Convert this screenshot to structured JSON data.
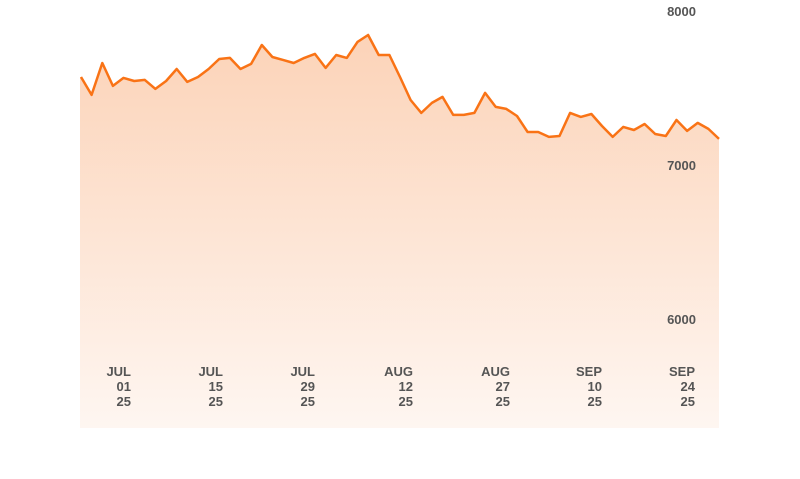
{
  "chart_data": {
    "type": "area",
    "title": "",
    "xlabel": "",
    "ylabel": "",
    "ylim": [
      5292,
      8071
    ],
    "grid": false,
    "legend": "none",
    "line_color": "#f97316",
    "fill_color_top": "#fcd3b8",
    "fill_color_bottom": "#fef6f1",
    "y_ticks": [
      {
        "value": 8000,
        "label": "8000"
      },
      {
        "value": 7000,
        "label": "7000"
      },
      {
        "value": 6000,
        "label": "6000"
      }
    ],
    "x_ticks": [
      {
        "month": "JUL",
        "day": "01",
        "year": "25"
      },
      {
        "month": "JUL",
        "day": "15",
        "year": "25"
      },
      {
        "month": "JUL",
        "day": "29",
        "year": "25"
      },
      {
        "month": "AUG",
        "day": "12",
        "year": "25"
      },
      {
        "month": "AUG",
        "day": "27",
        "year": "25"
      },
      {
        "month": "SEP",
        "day": "10",
        "year": "25"
      },
      {
        "month": "SEP",
        "day": "24",
        "year": "25"
      }
    ],
    "values": [
      7571,
      7455,
      7662,
      7513,
      7565,
      7545,
      7552,
      7494,
      7545,
      7623,
      7539,
      7571,
      7623,
      7688,
      7695,
      7623,
      7656,
      7779,
      7701,
      7682,
      7662,
      7695,
      7721,
      7630,
      7714,
      7695,
      7799,
      7844,
      7714,
      7714,
      7571,
      7422,
      7338,
      7403,
      7442,
      7325,
      7325,
      7338,
      7468,
      7377,
      7364,
      7318,
      7214,
      7214,
      7182,
      7188,
      7338,
      7312,
      7331,
      7253,
      7182,
      7247,
      7227,
      7266,
      7201,
      7188,
      7292,
      7221,
      7273,
      7234,
      7169
    ]
  }
}
